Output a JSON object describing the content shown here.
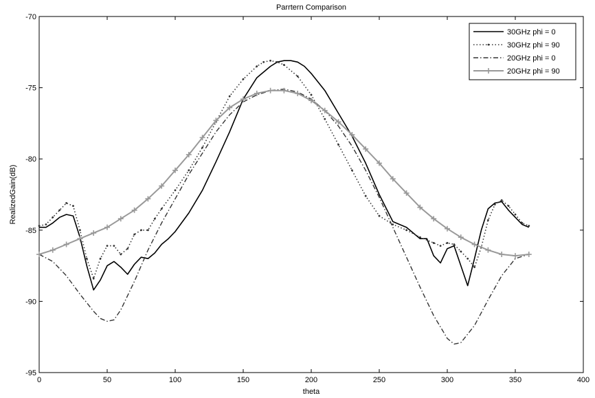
{
  "chart_data": {
    "type": "line",
    "title": "Parrtern Comparison",
    "xlabel": "theta",
    "ylabel": "RealizedGain(dB)",
    "xlim": [
      0,
      400
    ],
    "ylim": [
      -95,
      -70
    ],
    "xticks": [
      0,
      50,
      100,
      150,
      200,
      250,
      300,
      350,
      400
    ],
    "yticks": [
      -70,
      -75,
      -80,
      -85,
      -90,
      -95
    ],
    "grid": false,
    "legend_position": "top-right",
    "series": [
      {
        "name": "30GHz phi = 0",
        "color": "#000000",
        "style": "solid",
        "x": [
          0,
          5,
          10,
          15,
          20,
          25,
          30,
          35,
          40,
          45,
          50,
          55,
          60,
          65,
          70,
          75,
          80,
          85,
          90,
          95,
          100,
          110,
          120,
          130,
          140,
          150,
          160,
          170,
          175,
          180,
          185,
          190,
          195,
          200,
          210,
          220,
          230,
          240,
          250,
          260,
          270,
          280,
          285,
          290,
          295,
          300,
          305,
          310,
          315,
          320,
          325,
          330,
          335,
          340,
          345,
          350,
          355,
          360
        ],
        "values": [
          -84.8,
          -84.8,
          -84.5,
          -84.1,
          -83.9,
          -84.0,
          -85.5,
          -87.5,
          -89.2,
          -88.5,
          -87.5,
          -87.2,
          -87.6,
          -88.1,
          -87.4,
          -86.9,
          -87.0,
          -86.6,
          -86.0,
          -85.6,
          -85.1,
          -83.8,
          -82.2,
          -80.2,
          -78.1,
          -75.8,
          -74.3,
          -73.5,
          -73.2,
          -73.1,
          -73.1,
          -73.2,
          -73.5,
          -74.0,
          -75.2,
          -76.8,
          -78.4,
          -80.3,
          -82.5,
          -84.4,
          -84.8,
          -85.6,
          -85.6,
          -86.8,
          -87.3,
          -86.3,
          -86.1,
          -87.5,
          -88.9,
          -87.0,
          -85.0,
          -83.5,
          -83.1,
          -83.0,
          -83.6,
          -84.1,
          -84.6,
          -84.8
        ]
      },
      {
        "name": "30GHz phi = 90",
        "color": "#333333",
        "style": "dotted",
        "x": [
          0,
          5,
          10,
          15,
          20,
          25,
          30,
          35,
          40,
          45,
          50,
          55,
          60,
          65,
          70,
          75,
          80,
          85,
          90,
          100,
          110,
          120,
          130,
          140,
          150,
          160,
          165,
          170,
          175,
          180,
          190,
          200,
          210,
          220,
          230,
          240,
          250,
          260,
          270,
          280,
          290,
          295,
          300,
          305,
          310,
          315,
          320,
          325,
          330,
          335,
          340,
          345,
          350,
          355,
          360
        ],
        "values": [
          -84.7,
          -84.6,
          -84.1,
          -83.6,
          -83.1,
          -83.3,
          -85.0,
          -87.0,
          -88.4,
          -87.0,
          -86.1,
          -86.1,
          -86.7,
          -86.3,
          -85.3,
          -85.0,
          -85.0,
          -84.2,
          -83.5,
          -82.2,
          -80.8,
          -79.2,
          -77.4,
          -75.6,
          -74.4,
          -73.5,
          -73.2,
          -73.1,
          -73.2,
          -73.4,
          -74.2,
          -75.5,
          -77.2,
          -79.0,
          -80.8,
          -82.6,
          -84.0,
          -84.6,
          -85.0,
          -85.5,
          -85.9,
          -86.1,
          -85.9,
          -86.0,
          -86.5,
          -87.0,
          -87.6,
          -86.2,
          -84.3,
          -83.2,
          -82.9,
          -83.3,
          -83.9,
          -84.5,
          -84.7
        ]
      },
      {
        "name": "20GHz phi = 0",
        "color": "#333333",
        "style": "dashdot",
        "x": [
          0,
          10,
          20,
          30,
          40,
          45,
          50,
          55,
          60,
          70,
          80,
          90,
          100,
          110,
          120,
          130,
          140,
          150,
          160,
          170,
          180,
          190,
          200,
          210,
          220,
          230,
          240,
          250,
          260,
          270,
          280,
          290,
          300,
          305,
          310,
          320,
          330,
          340,
          350,
          360
        ],
        "values": [
          -86.7,
          -87.2,
          -88.2,
          -89.5,
          -90.7,
          -91.2,
          -91.4,
          -91.3,
          -90.6,
          -88.6,
          -86.4,
          -84.5,
          -82.8,
          -81.1,
          -79.6,
          -78.1,
          -76.9,
          -76.0,
          -75.5,
          -75.2,
          -75.1,
          -75.3,
          -75.8,
          -76.6,
          -77.7,
          -79.1,
          -80.8,
          -82.7,
          -84.8,
          -86.9,
          -89.0,
          -91.0,
          -92.6,
          -93.0,
          -92.9,
          -91.7,
          -89.9,
          -88.2,
          -87.0,
          -86.7
        ]
      },
      {
        "name": "20GHz phi = 90",
        "color": "#999999",
        "style": "solid-plus",
        "x": [
          0,
          10,
          20,
          30,
          40,
          50,
          60,
          70,
          80,
          90,
          100,
          110,
          120,
          130,
          140,
          150,
          160,
          170,
          180,
          190,
          200,
          210,
          220,
          230,
          240,
          250,
          260,
          270,
          280,
          290,
          300,
          310,
          320,
          330,
          340,
          350,
          360
        ],
        "values": [
          -86.7,
          -86.4,
          -86.0,
          -85.6,
          -85.2,
          -84.8,
          -84.2,
          -83.6,
          -82.8,
          -81.9,
          -80.8,
          -79.7,
          -78.5,
          -77.3,
          -76.4,
          -75.8,
          -75.4,
          -75.2,
          -75.2,
          -75.4,
          -75.9,
          -76.6,
          -77.4,
          -78.3,
          -79.3,
          -80.3,
          -81.4,
          -82.4,
          -83.4,
          -84.2,
          -84.9,
          -85.5,
          -86.0,
          -86.4,
          -86.7,
          -86.8,
          -86.7
        ]
      }
    ]
  }
}
